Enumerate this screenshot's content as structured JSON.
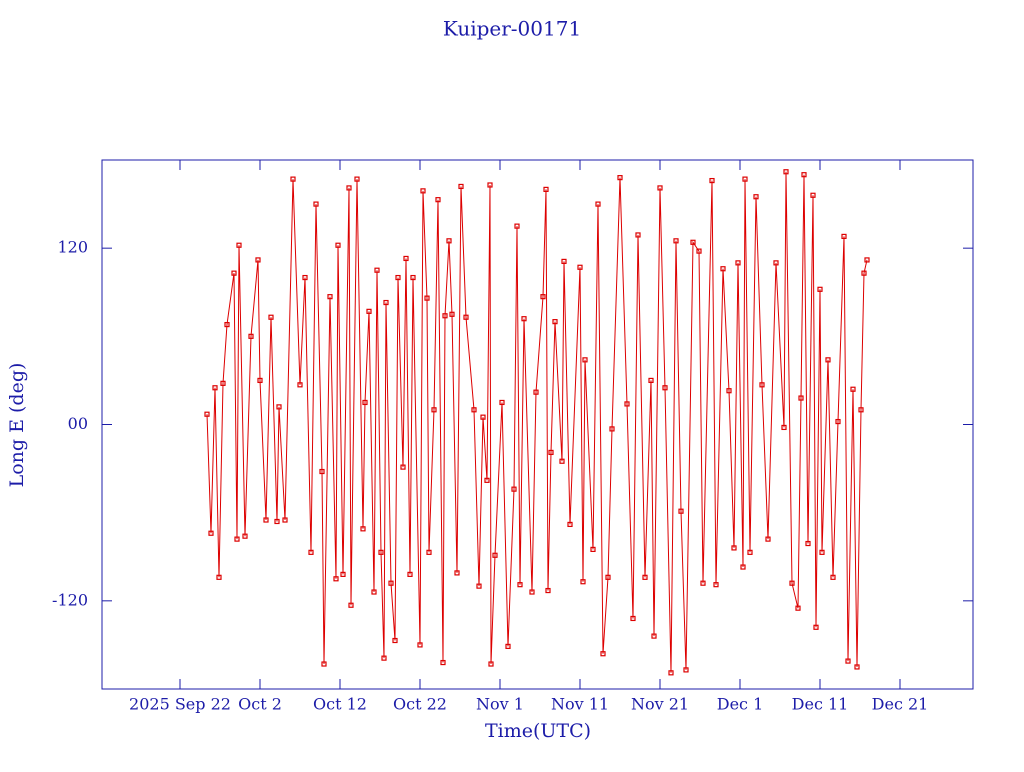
{
  "chart_data": {
    "type": "scatter-line",
    "title": "Kuiper-00171",
    "x_label": "Time(UTC)",
    "y_label": "Long E (deg)",
    "color": "#dd0000",
    "axis_color": "#1c1ca8",
    "xlim": [
      "2025-09-12 06:00",
      "2025-12-30 03:00"
    ],
    "xticks": [
      {
        "value": "2025-09-22 00:00",
        "label": "2025 Sep 22"
      },
      {
        "value": "2025-10-02 00:00",
        "label": "Oct 2"
      },
      {
        "value": "2025-10-12 00:00",
        "label": "Oct 12"
      },
      {
        "value": "2025-10-22 00:00",
        "label": "Oct 22"
      },
      {
        "value": "2025-11-01 00:00",
        "label": "Nov 1"
      },
      {
        "value": "2025-11-11 00:00",
        "label": "Nov 11"
      },
      {
        "value": "2025-11-21 00:00",
        "label": "Nov 21"
      },
      {
        "value": "2025-12-01 00:00",
        "label": "Dec 1"
      },
      {
        "value": "2025-12-11 00:00",
        "label": "Dec 11"
      },
      {
        "value": "2025-12-21 00:00",
        "label": "Dec 21"
      }
    ],
    "ylim": [
      -180,
      180
    ],
    "yticks": [
      -120,
      {
        "value": 0,
        "label": "00"
      },
      120
    ],
    "x": [
      "2025-09-25 09:00",
      "2025-09-25 21:00",
      "2025-09-26 09:00",
      "2025-09-26 21:00",
      "2025-09-27 09:00",
      "2025-09-27 21:00",
      "2025-09-28 18:00",
      "2025-09-29 03:00",
      "2025-09-29 09:00",
      "2025-09-30 03:00",
      "2025-09-30 21:00",
      "2025-10-01 18:00",
      "2025-10-02 00:00",
      "2025-10-02 18:00",
      "2025-10-03 09:00",
      "2025-10-04 03:00",
      "2025-10-04 09:00",
      "2025-10-05 03:00",
      "2025-10-06 03:00",
      "2025-10-07 00:00",
      "2025-10-07 15:00",
      "2025-10-08 09:00",
      "2025-10-09 00:00",
      "2025-10-09 18:00",
      "2025-10-10 00:00",
      "2025-10-10 18:00",
      "2025-10-11 12:00",
      "2025-10-11 18:00",
      "2025-10-12 09:00",
      "2025-10-13 03:00",
      "2025-10-13 09:00",
      "2025-10-14 03:00",
      "2025-10-14 21:00",
      "2025-10-15 03:00",
      "2025-10-15 15:00",
      "2025-10-16 06:00",
      "2025-10-16 15:00",
      "2025-10-17 03:00",
      "2025-10-17 12:00",
      "2025-10-17 18:00",
      "2025-10-18 09:00",
      "2025-10-18 21:00",
      "2025-10-19 06:00",
      "2025-10-19 21:00",
      "2025-10-20 06:00",
      "2025-10-20 18:00",
      "2025-10-21 03:00",
      "2025-10-22 00:00",
      "2025-10-22 09:00",
      "2025-10-22 21:00",
      "2025-10-23 03:00",
      "2025-10-23 18:00",
      "2025-10-24 06:00",
      "2025-10-24 21:00",
      "2025-10-25 03:00",
      "2025-10-25 15:00",
      "2025-10-26 00:00",
      "2025-10-26 15:00",
      "2025-10-27 03:00",
      "2025-10-27 18:00",
      "2025-10-28 18:00",
      "2025-10-29 09:00",
      "2025-10-29 21:00",
      "2025-10-30 09:00",
      "2025-10-30 18:00",
      "2025-10-30 21:00",
      "2025-10-31 09:00",
      "2025-11-01 06:00",
      "2025-11-02 00:00",
      "2025-11-02 18:00",
      "2025-11-03 03:00",
      "2025-11-03 12:00",
      "2025-11-04 00:00",
      "2025-11-05 00:00",
      "2025-11-05 12:00",
      "2025-11-06 09:00",
      "2025-11-06 18:00",
      "2025-11-07 00:00",
      "2025-11-07 09:00",
      "2025-11-07 21:00",
      "2025-11-08 18:00",
      "2025-11-09 00:00",
      "2025-11-09 18:00",
      "2025-11-11 00:00",
      "2025-11-11 09:00",
      "2025-11-11 15:00",
      "2025-11-12 15:00",
      "2025-11-13 06:00",
      "2025-11-13 21:00",
      "2025-11-14 12:00",
      "2025-11-15 00:00",
      "2025-11-16 00:00",
      "2025-11-16 21:00",
      "2025-11-17 15:00",
      "2025-11-18 06:00",
      "2025-11-19 03:00",
      "2025-11-19 21:00",
      "2025-11-20 06:00",
      "2025-11-21 00:00",
      "2025-11-21 15:00",
      "2025-11-22 09:00",
      "2025-11-23 00:00",
      "2025-11-23 15:00",
      "2025-11-24 06:00",
      "2025-11-25 03:00",
      "2025-11-25 21:00",
      "2025-11-26 09:00",
      "2025-11-27 12:00",
      "2025-11-28 00:00",
      "2025-11-28 21:00",
      "2025-11-29 15:00",
      "2025-11-30 06:00",
      "2025-11-30 18:00",
      "2025-12-01 09:00",
      "2025-12-01 15:00",
      "2025-12-02 06:00",
      "2025-12-03 00:00",
      "2025-12-03 18:00",
      "2025-12-04 12:00",
      "2025-12-05 12:00",
      "2025-12-06 12:00",
      "2025-12-06 18:00",
      "2025-12-07 12:00",
      "2025-12-08 06:00",
      "2025-12-08 15:00",
      "2025-12-09 00:00",
      "2025-12-09 12:00",
      "2025-12-10 03:00",
      "2025-12-10 12:00",
      "2025-12-11 00:00",
      "2025-12-11 06:00",
      "2025-12-12 00:00",
      "2025-12-12 15:00",
      "2025-12-13 06:00",
      "2025-12-14 00:00",
      "2025-12-14 12:00",
      "2025-12-15 03:00",
      "2025-12-15 15:00",
      "2025-12-16 03:00",
      "2025-12-16 12:00",
      "2025-12-16 21:00"
    ],
    "values": [
      7,
      -74,
      25,
      -104,
      28,
      68,
      103,
      -78,
      122,
      -76,
      60,
      112,
      30,
      -65,
      73,
      -66,
      12,
      -65,
      167,
      27,
      100,
      -87,
      150,
      -32,
      -163,
      87,
      -105,
      122,
      -102,
      161,
      -123,
      167,
      -71,
      15,
      77,
      -114,
      105,
      -87,
      -159,
      83,
      -108,
      -147,
      100,
      -29,
      113,
      -102,
      100,
      -150,
      159,
      86,
      -87,
      10,
      153,
      -162,
      74,
      125,
      75,
      -101,
      162,
      73,
      10,
      -110,
      5,
      -38,
      163,
      -163,
      -89,
      15,
      -151,
      -44,
      135,
      -109,
      72,
      -114,
      22,
      87,
      160,
      -113,
      -19,
      70,
      -25,
      111,
      -68,
      107,
      -107,
      44,
      -85,
      150,
      -156,
      -104,
      -3,
      168,
      14,
      -132,
      129,
      -104,
      30,
      -144,
      161,
      25,
      -169,
      125,
      -59,
      -167,
      124,
      118,
      -108,
      166,
      -109,
      106,
      23,
      -84,
      110,
      -97,
      167,
      -87,
      155,
      27,
      -78,
      110,
      -2,
      172,
      -108,
      -125,
      18,
      170,
      -81,
      156,
      -138,
      92,
      -87,
      44,
      -104,
      2,
      128,
      -161,
      24,
      -165,
      10,
      103,
      112
    ]
  }
}
